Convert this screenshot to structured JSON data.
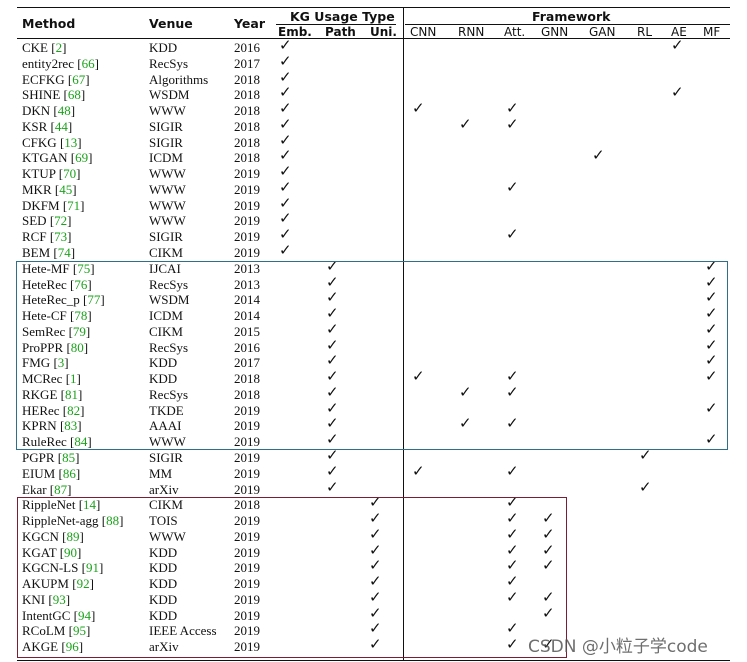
{
  "headers": {
    "method": "Method",
    "venue": "Venue",
    "year": "Year",
    "kg_usage": "KG Usage Type",
    "framework": "Framework",
    "kg_sub": [
      "Emb.",
      "Path",
      "Uni."
    ],
    "fw_sub": [
      "CNN",
      "RNN",
      "Att.",
      "GNN",
      "GAN",
      "RL",
      "AE",
      "MF"
    ]
  },
  "rows": [
    {
      "name": "CKE",
      "ref": "2",
      "venue": "KDD",
      "year": "2016",
      "kg": [
        1,
        0,
        0
      ],
      "fw": [
        0,
        0,
        0,
        0,
        0,
        0,
        1,
        0
      ]
    },
    {
      "name": "entity2rec",
      "ref": "66",
      "venue": "RecSys",
      "year": "2017",
      "kg": [
        1,
        0,
        0
      ],
      "fw": [
        0,
        0,
        0,
        0,
        0,
        0,
        0,
        0
      ]
    },
    {
      "name": "ECFKG",
      "ref": "67",
      "venue": "Algorithms",
      "year": "2018",
      "kg": [
        1,
        0,
        0
      ],
      "fw": [
        0,
        0,
        0,
        0,
        0,
        0,
        0,
        0
      ]
    },
    {
      "name": "SHINE",
      "ref": "68",
      "venue": "WSDM",
      "year": "2018",
      "kg": [
        1,
        0,
        0
      ],
      "fw": [
        0,
        0,
        0,
        0,
        0,
        0,
        1,
        0
      ]
    },
    {
      "name": "DKN",
      "ref": "48",
      "venue": "WWW",
      "year": "2018",
      "kg": [
        1,
        0,
        0
      ],
      "fw": [
        1,
        0,
        1,
        0,
        0,
        0,
        0,
        0
      ]
    },
    {
      "name": "KSR",
      "ref": "44",
      "venue": "SIGIR",
      "year": "2018",
      "kg": [
        1,
        0,
        0
      ],
      "fw": [
        0,
        1,
        1,
        0,
        0,
        0,
        0,
        0
      ]
    },
    {
      "name": "CFKG",
      "ref": "13",
      "venue": "SIGIR",
      "year": "2018",
      "kg": [
        1,
        0,
        0
      ],
      "fw": [
        0,
        0,
        0,
        0,
        0,
        0,
        0,
        0
      ]
    },
    {
      "name": "KTGAN",
      "ref": "69",
      "venue": "ICDM",
      "year": "2018",
      "kg": [
        1,
        0,
        0
      ],
      "fw": [
        0,
        0,
        0,
        0,
        1,
        0,
        0,
        0
      ]
    },
    {
      "name": "KTUP",
      "ref": "70",
      "venue": "WWW",
      "year": "2019",
      "kg": [
        1,
        0,
        0
      ],
      "fw": [
        0,
        0,
        0,
        0,
        0,
        0,
        0,
        0
      ]
    },
    {
      "name": "MKR",
      "ref": "45",
      "venue": "WWW",
      "year": "2019",
      "kg": [
        1,
        0,
        0
      ],
      "fw": [
        0,
        0,
        1,
        0,
        0,
        0,
        0,
        0
      ]
    },
    {
      "name": "DKFM",
      "ref": "71",
      "venue": "WWW",
      "year": "2019",
      "kg": [
        1,
        0,
        0
      ],
      "fw": [
        0,
        0,
        0,
        0,
        0,
        0,
        0,
        0
      ]
    },
    {
      "name": "SED",
      "ref": "72",
      "venue": "WWW",
      "year": "2019",
      "kg": [
        1,
        0,
        0
      ],
      "fw": [
        0,
        0,
        0,
        0,
        0,
        0,
        0,
        0
      ]
    },
    {
      "name": "RCF",
      "ref": "73",
      "venue": "SIGIR",
      "year": "2019",
      "kg": [
        1,
        0,
        0
      ],
      "fw": [
        0,
        0,
        1,
        0,
        0,
        0,
        0,
        0
      ]
    },
    {
      "name": "BEM",
      "ref": "74",
      "venue": "CIKM",
      "year": "2019",
      "kg": [
        1,
        0,
        0
      ],
      "fw": [
        0,
        0,
        0,
        0,
        0,
        0,
        0,
        0
      ]
    },
    {
      "name": "Hete-MF",
      "ref": "75",
      "venue": "IJCAI",
      "year": "2013",
      "kg": [
        0,
        1,
        0
      ],
      "fw": [
        0,
        0,
        0,
        0,
        0,
        0,
        0,
        1
      ]
    },
    {
      "name": "HeteRec",
      "ref": "76",
      "venue": "RecSys",
      "year": "2013",
      "kg": [
        0,
        1,
        0
      ],
      "fw": [
        0,
        0,
        0,
        0,
        0,
        0,
        0,
        1
      ]
    },
    {
      "name": "HeteRec_p",
      "ref": "77",
      "venue": "WSDM",
      "year": "2014",
      "kg": [
        0,
        1,
        0
      ],
      "fw": [
        0,
        0,
        0,
        0,
        0,
        0,
        0,
        1
      ]
    },
    {
      "name": "Hete-CF",
      "ref": "78",
      "venue": "ICDM",
      "year": "2014",
      "kg": [
        0,
        1,
        0
      ],
      "fw": [
        0,
        0,
        0,
        0,
        0,
        0,
        0,
        1
      ]
    },
    {
      "name": "SemRec",
      "ref": "79",
      "venue": "CIKM",
      "year": "2015",
      "kg": [
        0,
        1,
        0
      ],
      "fw": [
        0,
        0,
        0,
        0,
        0,
        0,
        0,
        1
      ]
    },
    {
      "name": "ProPPR",
      "ref": "80",
      "venue": "RecSys",
      "year": "2016",
      "kg": [
        0,
        1,
        0
      ],
      "fw": [
        0,
        0,
        0,
        0,
        0,
        0,
        0,
        1
      ]
    },
    {
      "name": "FMG",
      "ref": "3",
      "venue": "KDD",
      "year": "2017",
      "kg": [
        0,
        1,
        0
      ],
      "fw": [
        0,
        0,
        0,
        0,
        0,
        0,
        0,
        1
      ]
    },
    {
      "name": "MCRec",
      "ref": "1",
      "venue": "KDD",
      "year": "2018",
      "kg": [
        0,
        1,
        0
      ],
      "fw": [
        1,
        0,
        1,
        0,
        0,
        0,
        0,
        1
      ]
    },
    {
      "name": "RKGE",
      "ref": "81",
      "venue": "RecSys",
      "year": "2018",
      "kg": [
        0,
        1,
        0
      ],
      "fw": [
        0,
        1,
        1,
        0,
        0,
        0,
        0,
        0
      ]
    },
    {
      "name": "HERec",
      "ref": "82",
      "venue": "TKDE",
      "year": "2019",
      "kg": [
        0,
        1,
        0
      ],
      "fw": [
        0,
        0,
        0,
        0,
        0,
        0,
        0,
        1
      ]
    },
    {
      "name": "KPRN",
      "ref": "83",
      "venue": "AAAI",
      "year": "2019",
      "kg": [
        0,
        1,
        0
      ],
      "fw": [
        0,
        1,
        1,
        0,
        0,
        0,
        0,
        0
      ]
    },
    {
      "name": "RuleRec",
      "ref": "84",
      "venue": "WWW",
      "year": "2019",
      "kg": [
        0,
        1,
        0
      ],
      "fw": [
        0,
        0,
        0,
        0,
        0,
        0,
        0,
        1
      ]
    },
    {
      "name": "PGPR",
      "ref": "85",
      "venue": "SIGIR",
      "year": "2019",
      "kg": [
        0,
        1,
        0
      ],
      "fw": [
        0,
        0,
        0,
        0,
        0,
        1,
        0,
        0
      ]
    },
    {
      "name": "EIUM",
      "ref": "86",
      "venue": "MM",
      "year": "2019",
      "kg": [
        0,
        1,
        0
      ],
      "fw": [
        1,
        0,
        1,
        0,
        0,
        0,
        0,
        0
      ]
    },
    {
      "name": "Ekar",
      "ref": "87",
      "venue": "arXiv",
      "year": "2019",
      "kg": [
        0,
        1,
        0
      ],
      "fw": [
        0,
        0,
        0,
        0,
        0,
        1,
        0,
        0
      ]
    },
    {
      "name": "RippleNet",
      "ref": "14",
      "venue": "CIKM",
      "year": "2018",
      "kg": [
        0,
        0,
        1
      ],
      "fw": [
        0,
        0,
        1,
        0,
        0,
        0,
        0,
        0
      ]
    },
    {
      "name": "RippleNet-agg",
      "ref": "88",
      "venue": "TOIS",
      "year": "2019",
      "kg": [
        0,
        0,
        1
      ],
      "fw": [
        0,
        0,
        1,
        1,
        0,
        0,
        0,
        0
      ]
    },
    {
      "name": "KGCN",
      "ref": "89",
      "venue": "WWW",
      "year": "2019",
      "kg": [
        0,
        0,
        1
      ],
      "fw": [
        0,
        0,
        1,
        1,
        0,
        0,
        0,
        0
      ]
    },
    {
      "name": "KGAT",
      "ref": "90",
      "venue": "KDD",
      "year": "2019",
      "kg": [
        0,
        0,
        1
      ],
      "fw": [
        0,
        0,
        1,
        1,
        0,
        0,
        0,
        0
      ]
    },
    {
      "name": "KGCN-LS",
      "ref": "91",
      "venue": "KDD",
      "year": "2019",
      "kg": [
        0,
        0,
        1
      ],
      "fw": [
        0,
        0,
        1,
        1,
        0,
        0,
        0,
        0
      ]
    },
    {
      "name": "AKUPM",
      "ref": "92",
      "venue": "KDD",
      "year": "2019",
      "kg": [
        0,
        0,
        1
      ],
      "fw": [
        0,
        0,
        1,
        0,
        0,
        0,
        0,
        0
      ]
    },
    {
      "name": "KNI",
      "ref": "93",
      "venue": "KDD",
      "year": "2019",
      "kg": [
        0,
        0,
        1
      ],
      "fw": [
        0,
        0,
        1,
        1,
        0,
        0,
        0,
        0
      ]
    },
    {
      "name": "IntentGC",
      "ref": "94",
      "venue": "KDD",
      "year": "2019",
      "kg": [
        0,
        0,
        1
      ],
      "fw": [
        0,
        0,
        0,
        1,
        0,
        0,
        0,
        0
      ]
    },
    {
      "name": "RCoLM",
      "ref": "95",
      "venue": "IEEE Access",
      "year": "2019",
      "kg": [
        0,
        0,
        1
      ],
      "fw": [
        0,
        0,
        1,
        0,
        0,
        0,
        0,
        0
      ]
    },
    {
      "name": "AKGE",
      "ref": "96",
      "venue": "arXiv",
      "year": "2019",
      "kg": [
        0,
        0,
        1
      ],
      "fw": [
        0,
        0,
        1,
        1,
        0,
        0,
        0,
        0
      ]
    }
  ],
  "watermark": "CSDN @小粒子学code",
  "colors": {
    "reference": "#1aa31a",
    "path_box": "#2e6f8a",
    "unified_box": "#7a1f33",
    "text": "#111111"
  }
}
